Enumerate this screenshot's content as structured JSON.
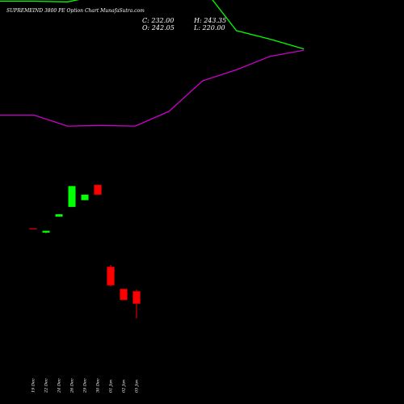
{
  "header": {
    "title": "SUPREMEIND 3800  PE Option  Chart MunafaSutra.com",
    "close": "C: 232.00",
    "open": "O: 242.05",
    "high": "H: 243.35",
    "low": "L: 220.00"
  },
  "colors": {
    "background": "#000000",
    "upper_band": "#00ff00",
    "lower_band": "#cc00cc",
    "bull": "#00ff00",
    "bear": "#ff0000",
    "text": "#ffffff"
  },
  "chart_data": {
    "type": "candlestick",
    "title": "SUPREMEIND 3800  PE Option  Chart MunafaSutra.com",
    "grid": false,
    "categories": [
      "19 Dec",
      "22 Dec",
      "24 Dec",
      "26 Dec",
      "29 Dec",
      "30 Dec",
      "01 Jan",
      "02 Jan",
      "05 Jan"
    ],
    "ylim": [
      150,
      480
    ],
    "candles": [
      {
        "open": 293.5,
        "high": 293.5,
        "low": 293.0,
        "close": 293.0
      },
      {
        "open": 290.0,
        "high": 291.5,
        "low": 289.5,
        "close": 291.5
      },
      {
        "open": 303.0,
        "high": 305.0,
        "low": 303.0,
        "close": 305.0
      },
      {
        "open": 311.0,
        "high": 328.0,
        "low": 311.0,
        "close": 328.0
      },
      {
        "open": 316.5,
        "high": 321.0,
        "low": 316.5,
        "close": 321.0
      },
      {
        "open": 329.0,
        "high": 329.0,
        "low": 321.0,
        "close": 321.0
      },
      {
        "open": 262.0,
        "high": 263.5,
        "low": 246.0,
        "close": 247.0
      },
      {
        "open": 244.0,
        "high": 244.0,
        "low": 235.0,
        "close": 235.0
      },
      {
        "open": 242.05,
        "high": 243.35,
        "low": 220.0,
        "close": 232.0
      }
    ],
    "series": [
      {
        "type": "line",
        "x": [
          0,
          1,
          2,
          3,
          4,
          5,
          6,
          7,
          8,
          9
        ],
        "values": [
          479.0,
          479.0,
          478.5,
          484.0,
          492.0,
          491.0,
          490.5,
          455.0,
          448.0,
          440.0
        ]
      },
      {
        "type": "line",
        "x": [
          0,
          1,
          2,
          3,
          4,
          5,
          6,
          7,
          8,
          9
        ],
        "values": [
          386.0,
          386.0,
          377.0,
          377.5,
          377.0,
          389.0,
          414.0,
          423.0,
          434.0,
          439.0
        ]
      }
    ]
  }
}
